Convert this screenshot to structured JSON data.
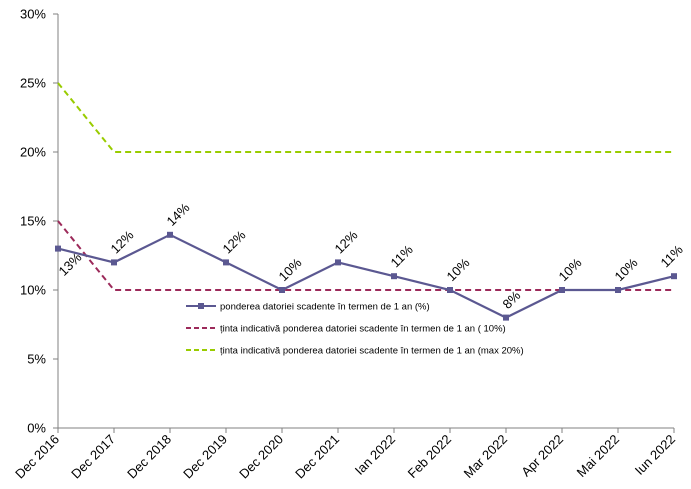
{
  "chart_data": {
    "type": "line",
    "categories": [
      "Dec 2016",
      "Dec 2017",
      "Dec 2018",
      "Dec 2019",
      "Dec 2020",
      "Dec 2021",
      "Ian 2022",
      "Feb 2022",
      "Mar 2022",
      "Apr 2022",
      "Mai 2022",
      "Iun 2022"
    ],
    "ylim": [
      0,
      30
    ],
    "yticks": [
      "0%",
      "5%",
      "10%",
      "15%",
      "20%",
      "25%",
      "30%"
    ],
    "series": [
      {
        "name": "ponderea datoriei scadente în termen de 1 an (%)",
        "values": [
          13,
          12,
          14,
          12,
          10,
          12,
          11,
          10,
          8,
          10,
          10,
          11
        ],
        "labels": [
          "13%",
          "12%",
          "14%",
          "12%",
          "10%",
          "12%",
          "11%",
          "10%",
          "8%",
          "10%",
          "10%",
          "11%"
        ],
        "color": "#5b5891",
        "style": "solid",
        "marker": "square"
      },
      {
        "name": "ținta indicativă ponderea datoriei scadente în termen de 1 an (  10%)",
        "values": [
          15,
          10,
          10,
          10,
          10,
          10,
          10,
          10,
          10,
          10,
          10,
          10
        ],
        "color": "#9c2a5a",
        "style": "dashed"
      },
      {
        "name": "ținta indicativă ponderea datoriei scadente în termen de 1 an (max 20%)",
        "values": [
          25,
          20,
          20,
          20,
          20,
          20,
          20,
          20,
          20,
          20,
          20,
          20
        ],
        "color": "#99cc00",
        "style": "dashed"
      }
    ],
    "legend_position": "center-right",
    "grid": false
  }
}
